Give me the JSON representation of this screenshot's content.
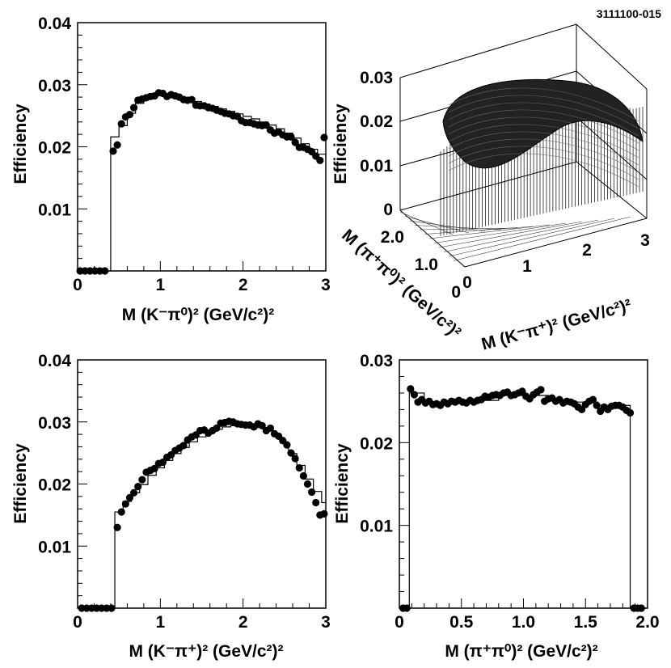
{
  "figure_id": "3111100-015",
  "chart_data": [
    {
      "type": "scatter",
      "panel": "top-left",
      "title": "",
      "xlabel": "M (K⁻π⁰)² (GeV/c²)²",
      "ylabel": "Efficiency",
      "xlim": [
        0,
        3
      ],
      "ylim": [
        0,
        0.04
      ],
      "xticks": [
        0,
        1,
        2,
        3
      ],
      "yticks": [
        0.01,
        0.02,
        0.03,
        0.04
      ],
      "xtick_labels": [
        "0",
        "1",
        "2",
        "3"
      ],
      "ytick_labels": [
        "0.01",
        "0.02",
        "0.03",
        "0.04"
      ],
      "series": [
        {
          "name": "data points",
          "x": [
            0.03,
            0.09,
            0.15,
            0.21,
            0.27,
            0.33,
            0.43,
            0.48,
            0.53,
            0.58,
            0.63,
            0.68,
            0.73,
            0.78,
            0.83,
            0.88,
            0.93,
            0.98,
            1.03,
            1.08,
            1.13,
            1.18,
            1.23,
            1.28,
            1.33,
            1.38,
            1.43,
            1.48,
            1.53,
            1.58,
            1.63,
            1.68,
            1.73,
            1.78,
            1.83,
            1.88,
            1.93,
            1.98,
            2.03,
            2.08,
            2.13,
            2.18,
            2.23,
            2.28,
            2.33,
            2.38,
            2.43,
            2.48,
            2.53,
            2.58,
            2.63,
            2.68,
            2.73,
            2.78,
            2.83,
            2.88,
            2.93,
            2.98
          ],
          "y": [
            0,
            0,
            0,
            0,
            0,
            0,
            0.0193,
            0.0203,
            0.0237,
            0.0248,
            0.0252,
            0.0263,
            0.0275,
            0.0277,
            0.0279,
            0.0281,
            0.0282,
            0.0287,
            0.0286,
            0.0281,
            0.0284,
            0.0282,
            0.028,
            0.0276,
            0.0275,
            0.0276,
            0.0267,
            0.0266,
            0.0266,
            0.0263,
            0.0262,
            0.0259,
            0.0257,
            0.0254,
            0.0253,
            0.025,
            0.0249,
            0.0242,
            0.0239,
            0.0239,
            0.0237,
            0.0235,
            0.0234,
            0.0235,
            0.0227,
            0.0222,
            0.0224,
            0.0219,
            0.0216,
            0.0216,
            0.0207,
            0.0199,
            0.0199,
            0.0196,
            0.0192,
            0.0185,
            0.0178,
            0.0215
          ]
        },
        {
          "name": "MC histogram",
          "bin_edges": [
            0,
            0.4,
            0.5,
            0.6,
            0.7,
            0.8,
            0.9,
            1.0,
            1.1,
            1.2,
            1.3,
            1.4,
            1.5,
            1.6,
            1.7,
            1.8,
            1.9,
            2.0,
            2.1,
            2.2,
            2.3,
            2.4,
            2.5,
            2.6,
            2.7,
            2.8,
            2.9,
            3.0
          ],
          "values": [
            0,
            0.0216,
            0.0234,
            0.0254,
            0.027,
            0.0279,
            0.0284,
            0.0285,
            0.0284,
            0.0281,
            0.0277,
            0.0273,
            0.0269,
            0.0265,
            0.0261,
            0.0257,
            0.0253,
            0.0249,
            0.0245,
            0.024,
            0.0235,
            0.0229,
            0.0222,
            0.0214,
            0.0205,
            0.0196,
            0.0188
          ]
        }
      ]
    },
    {
      "type": "surface",
      "panel": "top-right",
      "title": "",
      "xlabel": "M (K⁻π⁺)² (GeV/c²)²",
      "ylabel": "M (π⁺π⁰)² (GeV/c²)²",
      "zlabel": "Efficiency",
      "xlim": [
        0,
        3
      ],
      "ylim": [
        0,
        2.0
      ],
      "zlim": [
        0,
        0.03
      ],
      "xtick_labels": [
        "0",
        "1",
        "2",
        "3"
      ],
      "ytick_labels": [
        "0",
        "1.0",
        "2.0"
      ],
      "ztick_labels": [
        "0",
        "0.01",
        "0.02",
        "0.03"
      ],
      "description": "Lego/surface plot of efficiency over the Dalitz plane, roughly 0.02-0.03 inside the kinematic boundary"
    },
    {
      "type": "scatter",
      "panel": "bottom-left",
      "title": "",
      "xlabel": "M (K⁻π⁺)² (GeV/c²)²",
      "ylabel": "Efficiency",
      "xlim": [
        0,
        3
      ],
      "ylim": [
        0,
        0.04
      ],
      "xticks": [
        0,
        1,
        2,
        3
      ],
      "yticks": [
        0.01,
        0.02,
        0.03,
        0.04
      ],
      "xtick_labels": [
        "0",
        "1",
        "2",
        "3"
      ],
      "ytick_labels": [
        "0.01",
        "0.02",
        "0.03",
        "0.04"
      ],
      "series": [
        {
          "name": "data points",
          "x": [
            0.05,
            0.11,
            0.17,
            0.23,
            0.29,
            0.35,
            0.41,
            0.48,
            0.53,
            0.58,
            0.63,
            0.68,
            0.73,
            0.78,
            0.83,
            0.88,
            0.93,
            0.98,
            1.03,
            1.08,
            1.13,
            1.18,
            1.23,
            1.28,
            1.33,
            1.38,
            1.43,
            1.48,
            1.53,
            1.58,
            1.63,
            1.68,
            1.73,
            1.78,
            1.83,
            1.88,
            1.93,
            1.98,
            2.03,
            2.08,
            2.13,
            2.18,
            2.23,
            2.28,
            2.33,
            2.38,
            2.43,
            2.48,
            2.53,
            2.58,
            2.63,
            2.68,
            2.73,
            2.78,
            2.83,
            2.88,
            2.93,
            2.98
          ],
          "y": [
            0,
            0,
            0,
            0,
            0,
            0,
            0,
            0.013,
            0.0155,
            0.0168,
            0.0178,
            0.0186,
            0.0196,
            0.0207,
            0.0219,
            0.0222,
            0.0225,
            0.0233,
            0.0235,
            0.0243,
            0.0247,
            0.0254,
            0.0258,
            0.0262,
            0.0271,
            0.0276,
            0.0279,
            0.0286,
            0.0287,
            0.0282,
            0.0286,
            0.029,
            0.0298,
            0.0299,
            0.0301,
            0.03,
            0.0297,
            0.0296,
            0.0295,
            0.0295,
            0.0292,
            0.0297,
            0.0294,
            0.0286,
            0.029,
            0.0281,
            0.0277,
            0.027,
            0.0263,
            0.025,
            0.0241,
            0.0226,
            0.0213,
            0.02,
            0.0187,
            0.017,
            0.015,
            0.0152
          ]
        },
        {
          "name": "MC histogram",
          "bin_edges": [
            0,
            0.45,
            0.55,
            0.65,
            0.75,
            0.85,
            0.95,
            1.05,
            1.15,
            1.25,
            1.35,
            1.45,
            1.55,
            1.65,
            1.75,
            1.85,
            1.95,
            2.05,
            2.15,
            2.25,
            2.35,
            2.45,
            2.55,
            2.65,
            2.75,
            2.85,
            2.95,
            3.0
          ],
          "values": [
            0,
            0.0155,
            0.0172,
            0.0186,
            0.0199,
            0.0214,
            0.0226,
            0.0238,
            0.0249,
            0.0259,
            0.0268,
            0.0276,
            0.0283,
            0.0288,
            0.0292,
            0.0294,
            0.0295,
            0.0294,
            0.0291,
            0.0286,
            0.0278,
            0.0266,
            0.0249,
            0.023,
            0.0208,
            0.0188,
            0.017
          ]
        }
      ]
    },
    {
      "type": "scatter",
      "panel": "bottom-right",
      "title": "",
      "xlabel": "M (π⁺π⁰)² (GeV/c²)²",
      "ylabel": "Efficiency",
      "xlim": [
        0,
        2.0
      ],
      "ylim": [
        0,
        0.03
      ],
      "xticks": [
        0,
        0.5,
        1.0,
        1.5,
        2.0
      ],
      "yticks": [
        0.01,
        0.02,
        0.03
      ],
      "xtick_labels": [
        "0",
        "0.5",
        "1.0",
        "1.5",
        "2.0"
      ],
      "ytick_labels": [
        "0.01",
        "0.02",
        "0.03"
      ],
      "series": [
        {
          "name": "data points",
          "x": [
            0.03,
            0.06,
            0.09,
            0.12,
            0.15,
            0.18,
            0.21,
            0.24,
            0.27,
            0.3,
            0.33,
            0.36,
            0.39,
            0.42,
            0.45,
            0.48,
            0.51,
            0.54,
            0.57,
            0.6,
            0.63,
            0.66,
            0.69,
            0.72,
            0.75,
            0.78,
            0.81,
            0.84,
            0.87,
            0.9,
            0.93,
            0.96,
            0.99,
            1.02,
            1.05,
            1.08,
            1.11,
            1.14,
            1.17,
            1.2,
            1.23,
            1.26,
            1.29,
            1.32,
            1.35,
            1.38,
            1.41,
            1.44,
            1.47,
            1.5,
            1.53,
            1.56,
            1.59,
            1.62,
            1.65,
            1.68,
            1.71,
            1.74,
            1.77,
            1.8,
            1.83,
            1.86,
            1.89,
            1.92,
            1.95
          ],
          "y": [
            0,
            0,
            0.0265,
            0.0258,
            0.0249,
            0.0252,
            0.0248,
            0.025,
            0.0246,
            0.0247,
            0.0245,
            0.0249,
            0.0247,
            0.025,
            0.0249,
            0.0251,
            0.0249,
            0.0248,
            0.0251,
            0.0249,
            0.0251,
            0.0252,
            0.0256,
            0.0255,
            0.0257,
            0.0258,
            0.0257,
            0.026,
            0.0261,
            0.0257,
            0.0258,
            0.026,
            0.0262,
            0.0256,
            0.0253,
            0.0258,
            0.0261,
            0.0264,
            0.025,
            0.0253,
            0.0254,
            0.025,
            0.0252,
            0.0248,
            0.025,
            0.0249,
            0.0247,
            0.0243,
            0.024,
            0.0246,
            0.025,
            0.0252,
            0.0245,
            0.0238,
            0.0243,
            0.024,
            0.0244,
            0.0245,
            0.0245,
            0.0243,
            0.0239,
            0.0236,
            0,
            0,
            0
          ]
        },
        {
          "name": "MC histogram",
          "bin_edges": [
            0,
            0.08,
            0.2,
            0.4,
            0.6,
            0.8,
            1.0,
            1.2,
            1.4,
            1.6,
            1.86,
            2.0
          ],
          "values": [
            0,
            0.026,
            0.0249,
            0.0249,
            0.0251,
            0.0257,
            0.0257,
            0.0252,
            0.0249,
            0.0245,
            0
          ]
        }
      ]
    }
  ]
}
